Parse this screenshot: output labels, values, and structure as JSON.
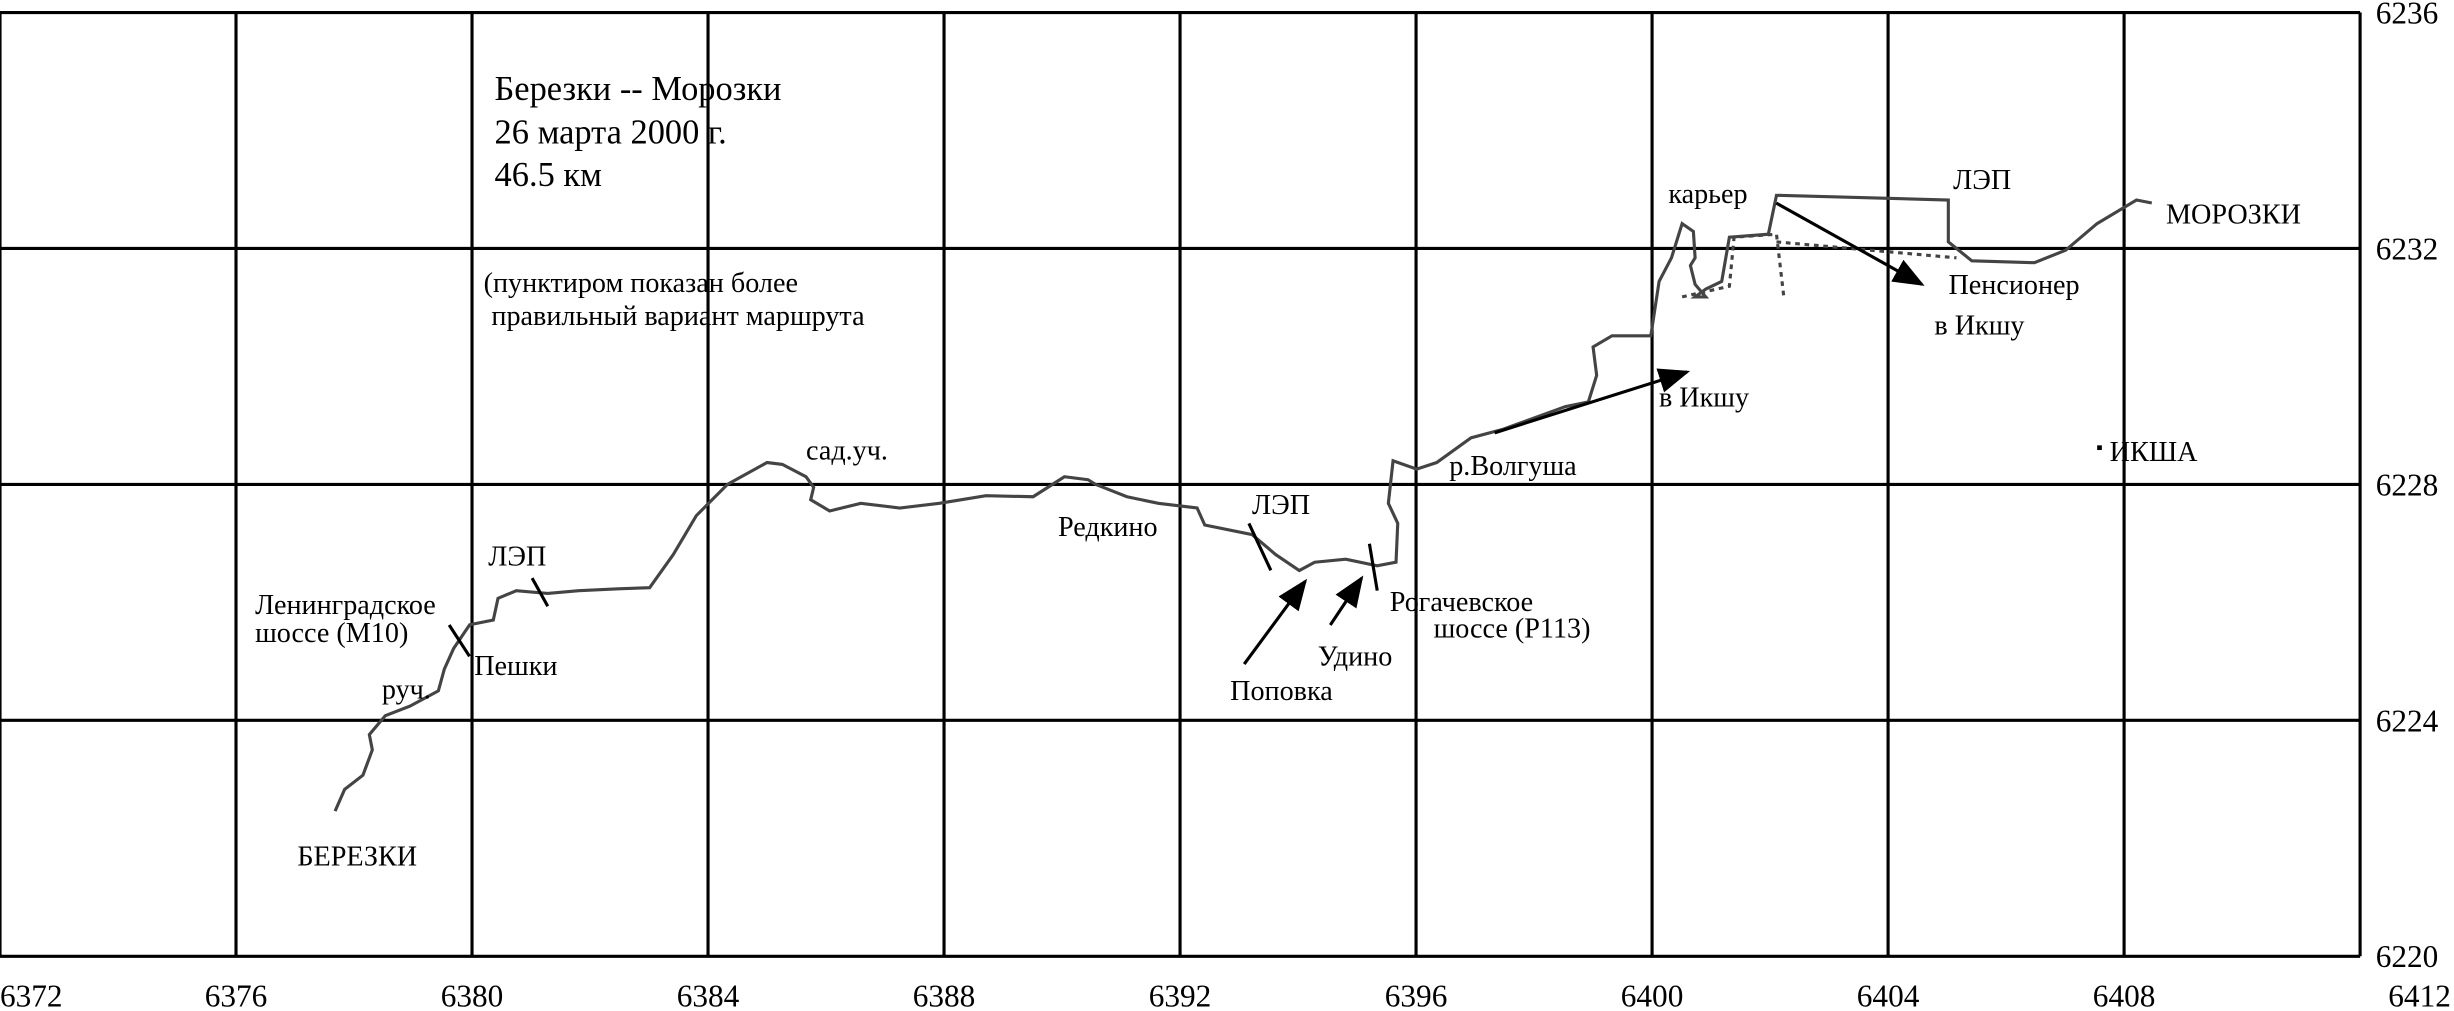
{
  "chart_data": {
    "type": "line",
    "xlim": [
      6372,
      6412
    ],
    "ylim": [
      6220,
      6236
    ],
    "xticks": [
      6372,
      6376,
      6380,
      6384,
      6388,
      6392,
      6396,
      6400,
      6404,
      6408,
      6412
    ],
    "yticks": [
      6220,
      6224,
      6228,
      6232,
      6236
    ],
    "grid": true,
    "series": [
      {
        "color": "#444444",
        "style": "solid",
        "x": [
          6377.68,
          6377.84,
          6378.15,
          6378.31,
          6378.26,
          6378.53,
          6378.95,
          6379.43,
          6379.53,
          6379.69,
          6379.96,
          6380.36,
          6380.44,
          6380.75,
          6381.28,
          6381.81,
          6382.48,
          6383.01,
          6383.41,
          6383.8,
          6384.33,
          6385.0,
          6385.26,
          6385.66,
          6385.79,
          6385.74,
          6386.06,
          6386.59,
          6387.25,
          6387.92,
          6388.71,
          6389.51,
          6390.04,
          6390.44,
          6390.57,
          6391.1,
          6391.63,
          6392.29,
          6392.42,
          6393.22,
          6393.62,
          6394.02,
          6394.28,
          6394.81,
          6395.34,
          6395.66,
          6395.69,
          6395.53,
          6395.61,
          6396.01,
          6396.35,
          6396.93,
          6397.46,
          6398.53,
          6398.92,
          6399.06,
          6399.0,
          6399.32,
          6399.72,
          6399.98,
          6400.12,
          6400.33,
          6400.51,
          6400.7,
          6400.73,
          6400.65,
          6400.73,
          6400.91,
          6400.73,
          6400.91,
          6401.18,
          6401.31,
          6401.97,
          6402.11,
          6403.3,
          6405.02,
          6405.02,
          6405.42,
          6406.48,
          6407.01,
          6407.54,
          6408.21,
          6408.47
        ],
        "y": [
          6222.46,
          6222.83,
          6223.07,
          6223.5,
          6223.76,
          6224.08,
          6224.24,
          6224.5,
          6224.87,
          6225.22,
          6225.62,
          6225.7,
          6226.07,
          6226.2,
          6226.15,
          6226.2,
          6226.23,
          6226.25,
          6226.81,
          6227.47,
          6228.0,
          6228.37,
          6228.34,
          6228.13,
          6227.95,
          6227.74,
          6227.55,
          6227.68,
          6227.6,
          6227.68,
          6227.81,
          6227.79,
          6228.13,
          6228.08,
          6228.0,
          6227.79,
          6227.68,
          6227.6,
          6227.31,
          6227.15,
          6226.81,
          6226.54,
          6226.68,
          6226.73,
          6226.62,
          6226.68,
          6227.34,
          6227.68,
          6228.4,
          6228.26,
          6228.37,
          6228.79,
          6228.93,
          6229.32,
          6229.4,
          6229.85,
          6230.33,
          6230.52,
          6230.52,
          6230.52,
          6231.44,
          6231.84,
          6232.42,
          6232.29,
          6231.84,
          6231.71,
          6231.39,
          6231.18,
          6231.18,
          6231.31,
          6231.44,
          6232.19,
          6232.24,
          6232.9,
          6232.87,
          6232.82,
          6232.11,
          6231.79,
          6231.76,
          6231.97,
          6232.42,
          6232.82,
          6232.77
        ]
      },
      {
        "color": "#444444",
        "style": "dashed",
        "x": [
          6400.51,
          6401.31,
          6401.39,
          6402.11,
          6402.24,
          null,
          6402.11,
          6405.16
        ],
        "y": [
          6231.18,
          6231.36,
          6232.19,
          6232.24,
          6231.13,
          null,
          6232.11,
          6231.84
        ]
      }
    ]
  },
  "annotations": [
    "Березки -- Морозки",
    "26 марта 2000 г.",
    "46.5 км",
    "(пунктиром показан более",
    "правильный вариант маршрута",
    "сад.уч.",
    "ЛЭП",
    "Ленинградское",
    "шоссе (М10)",
    "руч.",
    "Пешки",
    "БЕРЕЗКИ",
    "Редкино",
    "ЛЭП",
    "Поповка",
    "Удино",
    "Рогачевское",
    "шоссе (Р113)",
    "р.Волгуша",
    "в Икшу",
    "карьер",
    "ЛЭП",
    "МОРОЗКИ",
    "Пенсионер",
    "в Икшу",
    "ИКША"
  ]
}
